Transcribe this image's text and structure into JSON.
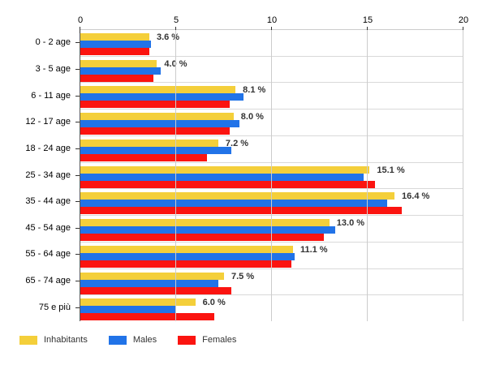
{
  "chart_data": {
    "type": "bar",
    "orientation": "horizontal",
    "title": "",
    "categories": [
      "0 - 2 age",
      "3 - 5 age",
      "6 - 11 age",
      "12 - 17 age",
      "18 - 24 age",
      "25 - 34 age",
      "35 - 44 age",
      "45 - 54 age",
      "55 - 64 age",
      "65 - 74 age",
      "75 e più"
    ],
    "series": [
      {
        "name": "Inhabitants",
        "color": "#F4CF3A",
        "values": [
          3.6,
          4.0,
          8.1,
          8.0,
          7.2,
          15.1,
          16.4,
          13.0,
          11.1,
          7.5,
          6.0
        ]
      },
      {
        "name": "Males",
        "color": "#2173E8",
        "values": [
          3.7,
          4.2,
          8.5,
          8.3,
          7.9,
          14.8,
          16.0,
          13.3,
          11.2,
          7.2,
          5.0
        ]
      },
      {
        "name": "Females",
        "color": "#FB1410",
        "values": [
          3.6,
          3.8,
          7.8,
          7.8,
          6.6,
          15.4,
          16.8,
          12.7,
          11.0,
          7.9,
          7.0
        ]
      }
    ],
    "value_labels": [
      "3.6 %",
      "4.0 %",
      "8.1 %",
      "8.0 %",
      "7.2 %",
      "15.1 %",
      "16.4 %",
      "13.0 %",
      "11.1 %",
      "7.5 %",
      "6.0 %"
    ],
    "x_axis": {
      "position": "top",
      "ticks": [
        0,
        5,
        10,
        15,
        20
      ],
      "lim": [
        0,
        20
      ]
    },
    "grid": {
      "vertical": true,
      "horizontal": true
    },
    "legend": {
      "position": "bottom-left",
      "entries": [
        {
          "label": "Inhabitants",
          "color": "#F4CF3A"
        },
        {
          "label": "Males",
          "color": "#2173E8"
        },
        {
          "label": "Females",
          "color": "#FB1410"
        }
      ]
    },
    "colors": {
      "grid_vertical": "#cccccc",
      "grid_horizontal": "#d9d9d9",
      "axis_line": "#555555",
      "tick": "#333333",
      "text": "#000000",
      "value_label_text": "#333333",
      "background": "#ffffff"
    }
  }
}
